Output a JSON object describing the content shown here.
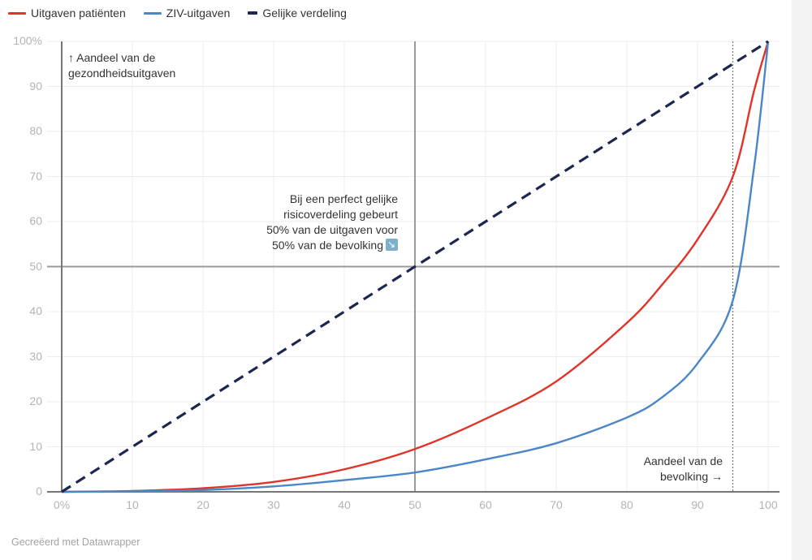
{
  "legend": [
    {
      "label": "Uitgaven patiënten",
      "color": "#e0342a",
      "style": "solid"
    },
    {
      "label": "ZIV-uitgaven",
      "color": "#4a86c8",
      "style": "solid"
    },
    {
      "label": "Gelijke verdeling",
      "color": "#1c2650",
      "style": "dashed"
    }
  ],
  "annotations": {
    "y_axis_label_line1": "↑ Aandeel van de",
    "y_axis_label_line2": "gezondheidsuitgaven",
    "middle_line1": "Bij een  perfect gelijke",
    "middle_line2": "risicoverdeling gebeurt",
    "middle_line3": "50% van de uitgaven voor",
    "middle_line4": "50% van de bevolking",
    "x_axis_label_line1": "Aandeel van de",
    "x_axis_label_line2": "bevolking →"
  },
  "footer": "Gecreëerd met Datawrapper",
  "chart_data": {
    "type": "line",
    "title": "",
    "xlabel": "Aandeel van de bevolking →",
    "ylabel": "↑ Aandeel van de gezondheidsuitgaven",
    "x_ticks": [
      "0%",
      "10",
      "20",
      "30",
      "40",
      "50",
      "60",
      "70",
      "80",
      "90",
      "100"
    ],
    "y_ticks": [
      "0",
      "10",
      "20",
      "30",
      "40",
      "50",
      "60",
      "70",
      "80",
      "90",
      "100%"
    ],
    "xlim": [
      0,
      100
    ],
    "ylim": [
      0,
      100
    ],
    "grid": true,
    "legend_position": "top",
    "reference_lines": [
      {
        "axis": "x",
        "value": 50,
        "style": "solid"
      },
      {
        "axis": "y",
        "value": 50,
        "style": "solid"
      },
      {
        "axis": "x",
        "value": 95,
        "style": "dotted"
      }
    ],
    "x": [
      0,
      10,
      20,
      30,
      40,
      50,
      60,
      70,
      80,
      85,
      90,
      95,
      98,
      100
    ],
    "series": [
      {
        "name": "Uitgaven patiënten",
        "color": "#e0342a",
        "values": [
          0,
          0.2,
          0.8,
          2.2,
          5,
          9.5,
          16.2,
          24.5,
          37.5,
          46,
          56,
          70,
          89,
          100
        ]
      },
      {
        "name": "ZIV-uitgaven",
        "color": "#4a86c8",
        "values": [
          0,
          0.1,
          0.4,
          1.2,
          2.6,
          4.3,
          7.2,
          10.8,
          16.5,
          21,
          28.5,
          42.5,
          72,
          100
        ]
      },
      {
        "name": "Gelijke verdeling",
        "color": "#1c2650",
        "values": [
          0,
          10,
          20,
          30,
          40,
          50,
          60,
          70,
          80,
          85,
          90,
          95,
          98,
          100
        ]
      }
    ]
  }
}
